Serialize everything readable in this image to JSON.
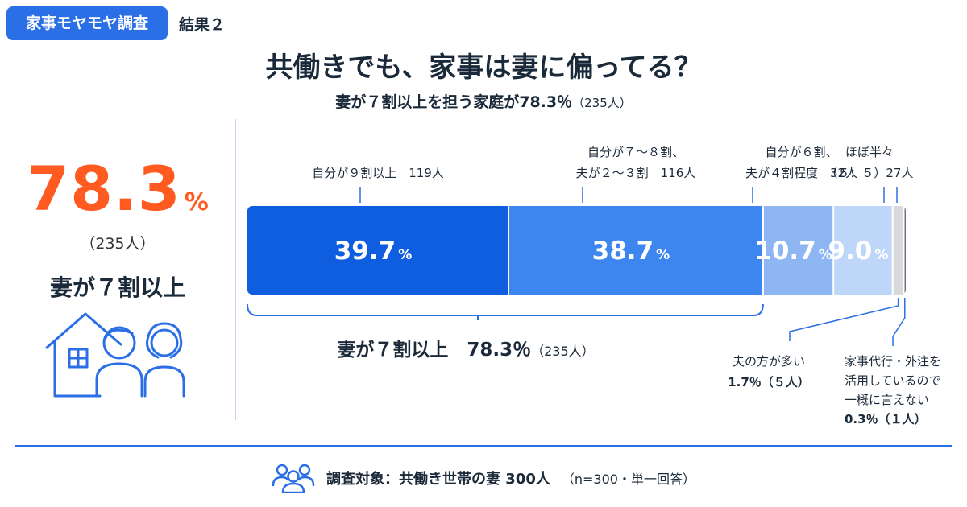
{
  "header": {
    "tag": "家事モヤモヤ調査",
    "result": "結果２"
  },
  "title": "共働きでも、家事は妻に偏ってる？",
  "subtitle": {
    "main": "妻が７割以上を担う家庭が78.3％",
    "count": "（235人）"
  },
  "left_panel": {
    "percent": "78.3",
    "unit": "%",
    "count": "（235人）",
    "label": "妻が７割以上",
    "icon": "family-house-icon"
  },
  "chart_data": {
    "type": "bar",
    "orientation": "horizontal-stacked-100",
    "unit": "%",
    "segments": [
      {
        "label_lines": [
          "自分が９割以上　119人"
        ],
        "value": 39.7,
        "value_label": "39.7",
        "count": 119,
        "color": "#0f5ee0"
      },
      {
        "label_lines": [
          "自分が７〜８割、",
          "夫が２〜３割　116人"
        ],
        "value": 38.7,
        "value_label": "38.7",
        "count": 116,
        "color": "#3d86ef"
      },
      {
        "label_lines": [
          "自分が６割、",
          "夫が４割程度　32人"
        ],
        "value": 10.7,
        "value_label": "10.7",
        "count": 32,
        "color": "#8db6f3"
      },
      {
        "label_lines": [
          "ほぼ半々",
          "（５：５）27人"
        ],
        "value": 9.0,
        "value_label": "9.0",
        "count": 27,
        "color": "#bed6f8"
      },
      {
        "label_lines": [
          "夫の方が多い",
          "1.7％（５人）"
        ],
        "value": 1.7,
        "value_label": "",
        "count": 5,
        "color": "#d7d9dd"
      },
      {
        "label_lines": [
          "家事代行・外注を",
          "活用しているので",
          "一概に言えない",
          "0.3％（１人）"
        ],
        "value": 0.3,
        "value_label": "",
        "count": 1,
        "color": "#6e7074"
      }
    ],
    "bracket": {
      "label": "妻が７割以上　78.3％",
      "count": "（235人）",
      "covers_segments": [
        0,
        1
      ]
    }
  },
  "footer": {
    "icon": "people-group-icon",
    "text": "調査対象：共働き世帯の妻 300人",
    "note": "（n=300・単一回答）"
  },
  "colors": {
    "accent": "#2b6fe6",
    "highlight": "#ff5a1f",
    "text": "#1b2a3a"
  }
}
